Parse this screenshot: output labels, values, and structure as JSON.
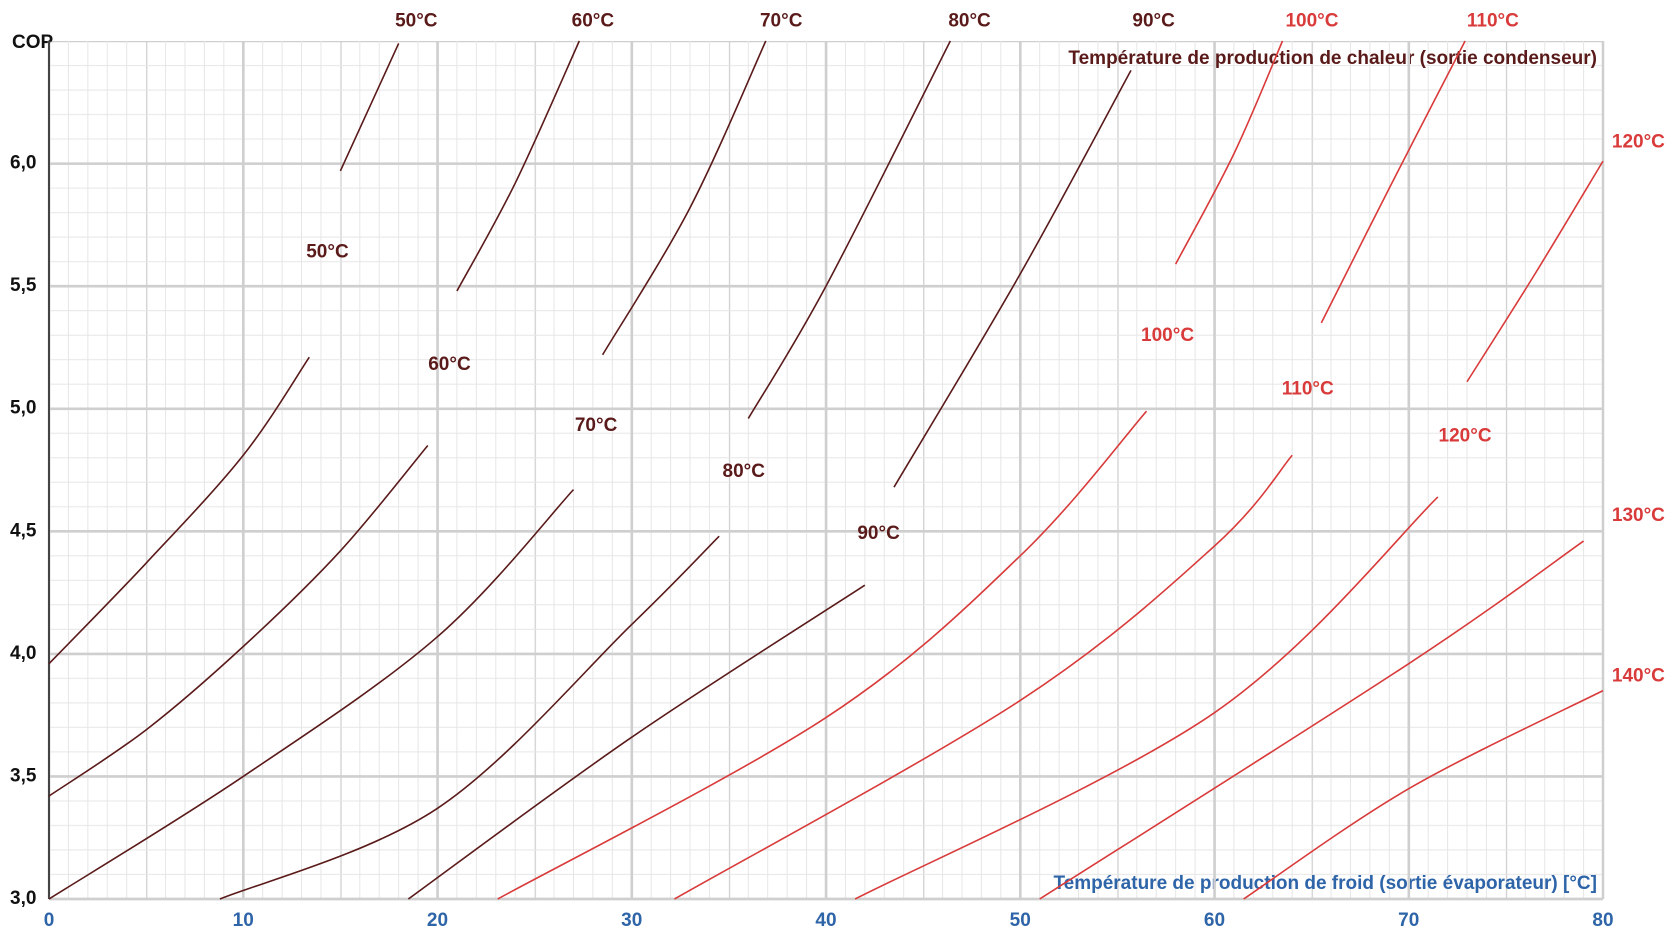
{
  "chart_data": {
    "type": "line",
    "ylabel": "COP",
    "xlabel": "Température de production de froid (sortie évaporateur) [°C]",
    "annotation": "Température de production de chaleur (sortie condenseur)",
    "xlim": [
      0,
      80
    ],
    "xticks": [
      0,
      10,
      20,
      30,
      40,
      50,
      60,
      70,
      80
    ],
    "ylim": [
      3,
      6.5
    ],
    "yticks": [
      {
        "value": 3,
        "label": "3,0"
      },
      {
        "value": 3.5,
        "label": "3,5"
      },
      {
        "value": 4,
        "label": "4,0"
      },
      {
        "value": 4.5,
        "label": "4,5"
      },
      {
        "value": 5,
        "label": "5,0"
      },
      {
        "value": 5.5,
        "label": "5,5"
      },
      {
        "value": 6,
        "label": "6,0"
      }
    ],
    "grid": true,
    "series": [
      {
        "name": "50°C",
        "color": "#5a1a1a",
        "x": [
          0,
          5,
          10,
          13.4
        ],
        "values": [
          3.96,
          4.37,
          4.81,
          5.21
        ]
      },
      {
        "name": "60°C",
        "color": "#5a1a1a",
        "x": [
          0,
          5,
          10,
          15,
          19.5
        ],
        "values": [
          3.42,
          3.69,
          4.03,
          4.42,
          4.85
        ]
      },
      {
        "name": "70°C",
        "color": "#5a1a1a",
        "x": [
          0,
          10,
          20,
          27
        ],
        "values": [
          3.0,
          3.5,
          4.07,
          4.67
        ]
      },
      {
        "name": "80°C",
        "color": "#5a1a1a",
        "x": [
          8.8,
          20,
          30,
          34.5
        ],
        "values": [
          3.0,
          3.37,
          4.12,
          4.48
        ]
      },
      {
        "name": "90°C",
        "color": "#5a1a1a",
        "x": [
          18.5,
          30,
          42
        ],
        "values": [
          3.0,
          3.66,
          4.28
        ]
      },
      {
        "name": "100°C",
        "color": "#d93a3a",
        "x": [
          23.1,
          40,
          50,
          56.5
        ],
        "values": [
          3.0,
          3.74,
          4.4,
          4.99
        ]
      },
      {
        "name": "110°C",
        "color": "#d93a3a",
        "x": [
          32.2,
          50,
          60,
          64
        ],
        "values": [
          3.0,
          3.81,
          4.44,
          4.81
        ]
      },
      {
        "name": "120°C",
        "color": "#d93a3a",
        "x": [
          41.5,
          60,
          71.5
        ],
        "values": [
          3.0,
          3.76,
          4.64
        ]
      },
      {
        "name": "130°C",
        "color": "#d93a3a",
        "x": [
          51,
          70,
          79
        ],
        "values": [
          3.0,
          3.96,
          4.46
        ]
      },
      {
        "name": "140°C",
        "color": "#d93a3a",
        "x": [
          61.5,
          70,
          80
        ],
        "values": [
          3.0,
          3.45,
          3.85
        ]
      },
      {
        "name": "50°C",
        "color": "#5a1a1a",
        "x": [
          15,
          18
        ],
        "values": [
          5.97,
          6.49
        ]
      },
      {
        "name": "60°C",
        "color": "#5a1a1a",
        "x": [
          21,
          24,
          27.3
        ],
        "values": [
          5.48,
          5.92,
          6.5
        ]
      },
      {
        "name": "70°C",
        "color": "#5a1a1a",
        "x": [
          28.5,
          33,
          36.9
        ],
        "values": [
          5.22,
          5.82,
          6.5
        ]
      },
      {
        "name": "80°C",
        "color": "#5a1a1a",
        "x": [
          36,
          40,
          46.4
        ],
        "values": [
          4.96,
          5.5,
          6.5
        ]
      },
      {
        "name": "90°C",
        "color": "#5a1a1a",
        "x": [
          43.5,
          50,
          55.7
        ],
        "values": [
          4.68,
          5.55,
          6.38
        ]
      },
      {
        "name": "100°C",
        "color": "#d93a3a",
        "x": [
          58,
          61,
          63.5
        ],
        "values": [
          5.59,
          6.04,
          6.5
        ]
      },
      {
        "name": "110°C",
        "color": "#d93a3a",
        "x": [
          65.5,
          69,
          72.9
        ],
        "values": [
          5.35,
          5.9,
          6.5
        ]
      },
      {
        "name": "120°C",
        "color": "#d93a3a",
        "x": [
          73,
          76.5,
          80
        ],
        "values": [
          5.11,
          5.55,
          6.01
        ]
      }
    ]
  }
}
